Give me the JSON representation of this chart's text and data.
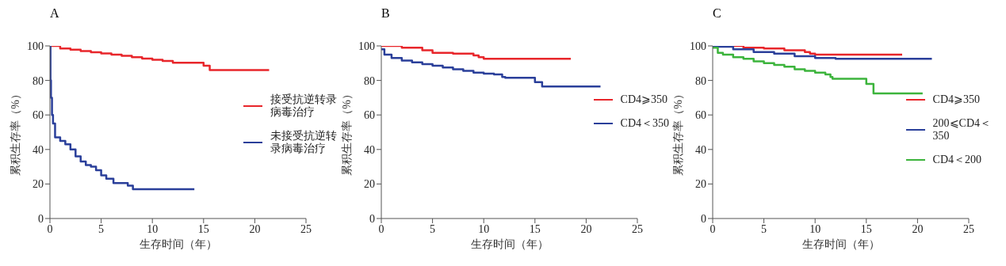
{
  "chart_data": [
    {
      "type": "step",
      "title": "A",
      "xlabel": "生存时间（年）",
      "ylabel": "累积生存率（%）",
      "xlim": [
        0,
        25
      ],
      "xticks": [
        0,
        5,
        10,
        15,
        20,
        25
      ],
      "ylim": [
        0,
        100
      ],
      "yticks": [
        0,
        20,
        40,
        60,
        80,
        100
      ],
      "legend": "right",
      "series": [
        {
          "name": "接受抗逆转录病毒治疗",
          "color": "#e8262b",
          "x": [
            0,
            1,
            2,
            3,
            4,
            5,
            6,
            7,
            8,
            9,
            10,
            11,
            12,
            13,
            14,
            15,
            15.6,
            21.4
          ],
          "values": [
            100,
            98.5,
            97.8,
            97,
            96.3,
            95.6,
            95,
            94.3,
            93.5,
            92.7,
            92,
            91.3,
            90.3,
            90.3,
            90.3,
            88.5,
            86,
            86
          ]
        },
        {
          "name": "未接受抗逆转录病毒治疗",
          "color": "#2a3f9a",
          "x": [
            0,
            0.05,
            0.1,
            0.2,
            0.3,
            0.5,
            1,
            1.5,
            2,
            2.5,
            3,
            3.5,
            4,
            4.5,
            5,
            5.5,
            6,
            6.2,
            7.5,
            7.6,
            8.1,
            14.1
          ],
          "values": [
            100,
            80,
            70,
            60,
            55,
            47,
            45,
            43,
            40,
            36,
            33,
            31,
            30,
            28,
            25,
            23,
            23,
            20.5,
            20.5,
            19,
            17,
            17
          ]
        }
      ]
    },
    {
      "type": "step",
      "title": "B",
      "xlabel": "生存时间（年）",
      "ylabel": "累积生存率（%）",
      "xlim": [
        0,
        25
      ],
      "xticks": [
        0,
        5,
        10,
        15,
        20,
        25
      ],
      "ylim": [
        0,
        100
      ],
      "yticks": [
        0,
        20,
        40,
        60,
        80,
        100
      ],
      "legend": "right",
      "series": [
        {
          "name": "CD4⩾350",
          "color": "#e8262b",
          "x": [
            0,
            2,
            4,
            5,
            7,
            9,
            9.5,
            10,
            18.5
          ],
          "values": [
            100,
            99,
            97.5,
            96,
            95.5,
            94.5,
            93.5,
            92.5,
            92.5
          ]
        },
        {
          "name": "CD4＜350",
          "color": "#2a3f9a",
          "x": [
            0,
            0.3,
            1,
            2,
            3,
            4,
            5,
            6,
            7,
            8,
            9,
            10,
            11,
            11.8,
            12.1,
            14.9,
            15,
            15.6,
            15.7,
            21.4
          ],
          "values": [
            98,
            95,
            93,
            91.5,
            90.5,
            89.5,
            88.5,
            87.5,
            86.5,
            85.5,
            84.5,
            84,
            83.5,
            82,
            81.5,
            81.5,
            79,
            79,
            76.5,
            76.5
          ]
        }
      ]
    },
    {
      "type": "step",
      "title": "C",
      "xlabel": "生存时间（年）",
      "ylabel": "累积生存率（%）",
      "xlim": [
        0,
        25
      ],
      "xticks": [
        0,
        5,
        10,
        15,
        20,
        25
      ],
      "ylim": [
        0,
        100
      ],
      "yticks": [
        0,
        20,
        40,
        60,
        80,
        100
      ],
      "legend": "right",
      "series": [
        {
          "name": "CD4⩾350",
          "color": "#e8262b",
          "x": [
            0,
            3,
            5,
            7,
            9,
            9.5,
            10,
            18.5
          ],
          "values": [
            100,
            99,
            98.5,
            97.5,
            96.5,
            95.5,
            95,
            95
          ]
        },
        {
          "name": "200⩽CD4＜350",
          "color": "#2a3f9a",
          "x": [
            0,
            2,
            4,
            6,
            8,
            10,
            12,
            21.4
          ],
          "values": [
            99.5,
            98,
            96.5,
            95.5,
            94,
            93,
            92.5,
            92.5
          ]
        },
        {
          "name": "CD4＜200",
          "color": "#3cb43c",
          "x": [
            0,
            0.5,
            1,
            2,
            3,
            4,
            5,
            6,
            7,
            8,
            9,
            10,
            11,
            11.5,
            11.7,
            14.9,
            15,
            15.6,
            15.7,
            20.5
          ],
          "values": [
            99,
            96,
            95,
            93.5,
            92.5,
            91,
            90,
            89,
            88,
            86.5,
            85.5,
            84.5,
            83.5,
            82,
            81,
            81,
            78,
            78,
            72.5,
            72.5
          ]
        }
      ]
    }
  ]
}
